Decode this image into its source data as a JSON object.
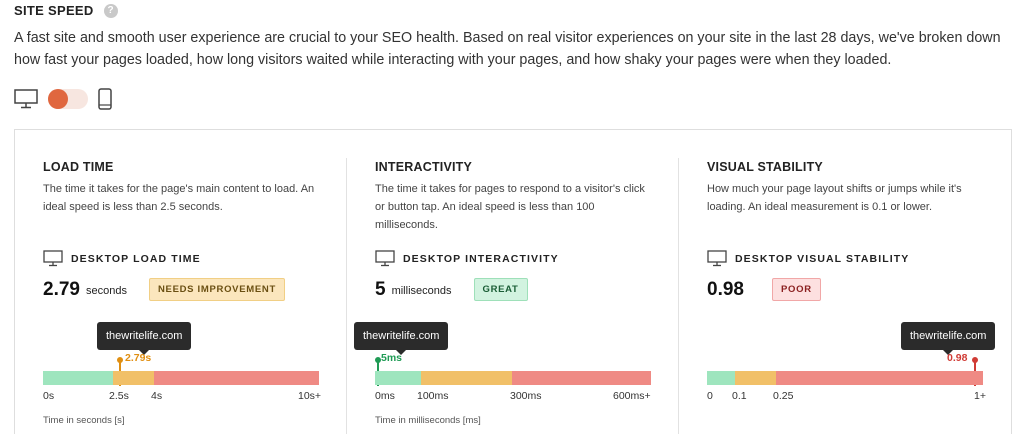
{
  "header": {
    "title": "SITE SPEED",
    "help_icon": "?"
  },
  "intro": "A fast site and smooth user experience are crucial to your SEO health. Based on real visitor experiences on your site in the last 28 days, we've broken down how fast your pages loaded, how long visitors waited while interacting with your pages, and how shaky your pages were when they loaded.",
  "device_toggle": {
    "left_icon": "desktop-icon",
    "right_icon": "mobile-icon",
    "selected": "desktop"
  },
  "colors": {
    "good": "#9ee5be",
    "needs": "#f1c068",
    "poor": "#ef8a84",
    "accent": "#e0673f"
  },
  "cards": [
    {
      "title": "LOAD TIME",
      "description": "The time it takes for the page's main content to load. An ideal speed is less than 2.5 seconds.",
      "sub_label": "DESKTOP LOAD TIME",
      "value": "2.79",
      "unit": "seconds",
      "badge": "NEEDS IMPROVEMENT",
      "tooltip": "thewritelife.com",
      "marker_label": "2.79s",
      "marker_color": "#e08f12",
      "ticks": [
        "0s",
        "2.5s",
        "4s",
        "10s+"
      ],
      "axis_caption": "Time in seconds [s]"
    },
    {
      "title": "INTERACTIVITY",
      "description": "The time it takes for pages to respond to a visitor's click or button tap. An ideal speed is less than 100 milliseconds.",
      "sub_label": "DESKTOP INTERACTIVITY",
      "value": "5",
      "unit": "milliseconds",
      "badge": "GREAT",
      "tooltip": "thewritelife.com",
      "marker_label": "5ms",
      "marker_color": "#1f9b55",
      "ticks": [
        "0ms",
        "100ms",
        "300ms",
        "600ms+"
      ],
      "axis_caption": "Time in milliseconds [ms]"
    },
    {
      "title": "VISUAL STABILITY",
      "description": "How much your page layout shifts or jumps while it's loading. An ideal measurement is 0.1 or lower.",
      "sub_label": "DESKTOP VISUAL STABILITY",
      "value": "0.98",
      "unit": "",
      "badge": "POOR",
      "tooltip": "thewritelife.com",
      "marker_label": "0.98",
      "marker_color": "#d03b35",
      "ticks": [
        "0",
        "0.1",
        "0.25",
        "1+"
      ],
      "axis_caption": ""
    }
  ]
}
